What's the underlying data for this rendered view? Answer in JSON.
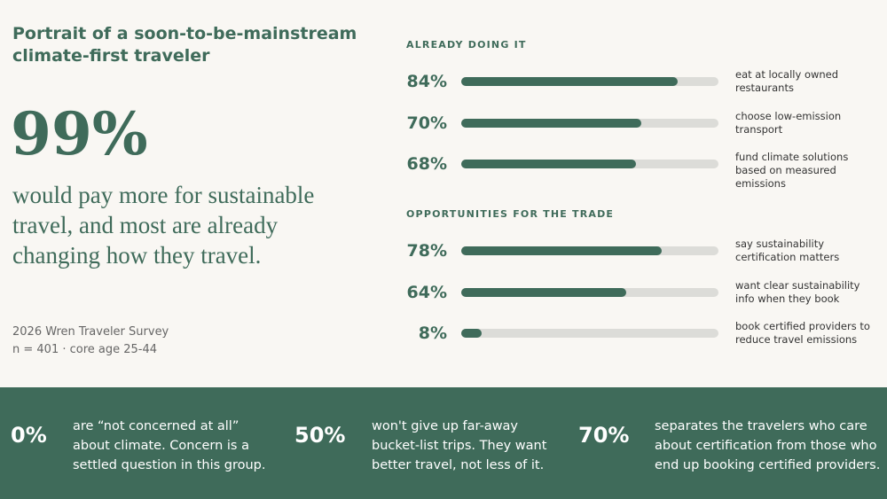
{
  "header": {
    "title": "Portrait of a soon-to-be-mainstream climate-first traveler"
  },
  "headline": {
    "stat": "99%",
    "text": "would pay more for sustainable travel, and most are already changing how they travel."
  },
  "source": {
    "name": "2026 Wren Traveler Survey",
    "sample": "n = 401 · core age 25-44"
  },
  "chart_data": [
    {
      "type": "bar",
      "title": "ALREADY DOING IT",
      "categories": [
        "eat at locally owned restaurants",
        "choose low-emission transport",
        "fund climate solutions based on measured emissions"
      ],
      "values": [
        84,
        70,
        68
      ],
      "value_labels": [
        "84%",
        "70%",
        "68%"
      ],
      "xlim": [
        0,
        100
      ],
      "color": "#3f6b5a",
      "track_color": "#dcdcd8"
    },
    {
      "type": "bar",
      "title": "OPPORTUNITIES FOR THE TRADE",
      "categories": [
        "say sustainability certification matters",
        "want clear sustainability info when they book",
        "book certified providers to reduce travel emissions"
      ],
      "values": [
        78,
        64,
        8
      ],
      "value_labels": [
        "78%",
        "64%",
        "8%"
      ],
      "xlim": [
        0,
        100
      ],
      "color": "#3f6b5a",
      "track_color": "#dcdcd8"
    }
  ],
  "footer": {
    "stats": [
      {
        "value": "0%",
        "text": "are “not concerned at all” about climate. Concern is a settled question in this group."
      },
      {
        "value": "50%",
        "text": "won't give up far-away bucket-list trips. They want better travel, not less of it."
      },
      {
        "value": "70%",
        "text": "separates the travelers who care about certification from those who end up booking certified providers."
      }
    ]
  }
}
